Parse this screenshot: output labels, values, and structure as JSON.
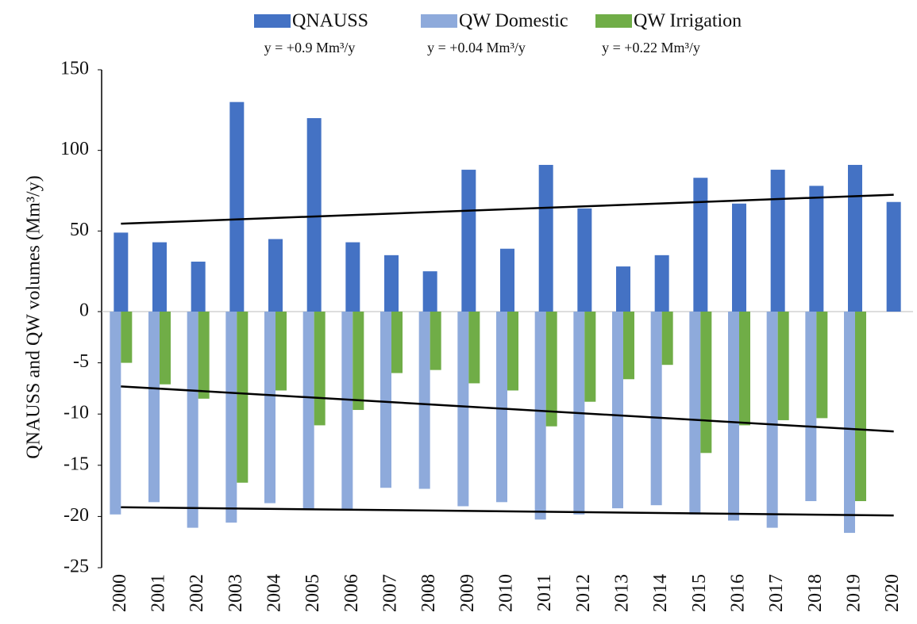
{
  "chart_data": {
    "type": "bar",
    "y_label": "QNAUSS and QW volumes (Mm³/y)",
    "categories": [
      "2000",
      "2001",
      "2002",
      "2003",
      "2004",
      "2005",
      "2006",
      "2007",
      "2008",
      "2009",
      "2010",
      "2011",
      "2012",
      "2013",
      "2014",
      "2015",
      "2016",
      "2017",
      "2018",
      "2019",
      "2020"
    ],
    "series": [
      {
        "name": "QNAUSS",
        "color": "#4472c4",
        "trend_label": "y = +0.9 Mm³/y",
        "trend": [
          54.5,
          72.5
        ],
        "values": [
          49,
          43,
          31,
          130,
          45,
          120,
          43,
          35,
          25,
          88,
          39,
          91,
          64,
          28,
          35,
          83,
          67,
          88,
          78,
          91,
          68
        ]
      },
      {
        "name": "QW Domestic",
        "color": "#8eaadb",
        "trend_label": "y = +0.04 Mm³/y",
        "trend": [
          -19.1,
          -19.9
        ],
        "values": [
          -19.8,
          -18.6,
          -21.1,
          -20.6,
          -18.7,
          -19.3,
          -19.3,
          -17.2,
          -17.3,
          -19,
          -18.6,
          -20.3,
          -19.8,
          -19.2,
          -18.9,
          -19.8,
          -20.4,
          -21.1,
          -18.5,
          -21.6,
          null
        ]
      },
      {
        "name": "QW Irrigation",
        "color": "#70ad47",
        "trend_label": "y = +0.22 Mm³/y",
        "trend": [
          -7.3,
          -11.7
        ],
        "values": [
          -5,
          -7.1,
          -8.5,
          -16.7,
          -7.7,
          -11.1,
          -9.6,
          -6,
          -5.7,
          -7,
          -7.7,
          -11.2,
          -8.8,
          -6.6,
          -5.2,
          -13.8,
          -11.1,
          -10.6,
          -10.4,
          -18.5,
          null
        ]
      }
    ],
    "ylim": [
      -25,
      150
    ],
    "yticks": [
      -25,
      -20,
      -15,
      -10,
      -5,
      0,
      50,
      100,
      150
    ],
    "grid": false
  }
}
